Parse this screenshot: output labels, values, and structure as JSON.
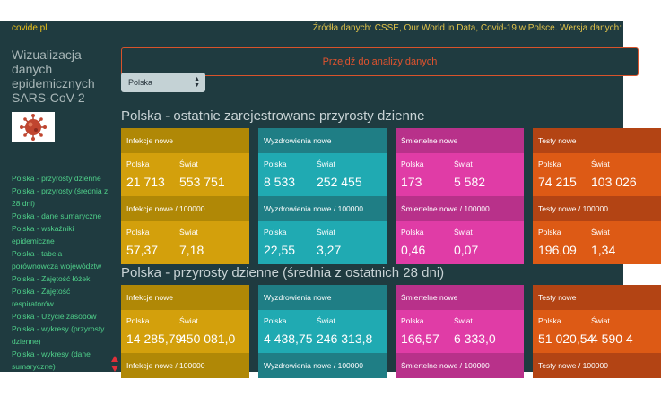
{
  "header": {
    "brand": "covide.pl",
    "sources": "Źródła danych: CSSE, Our World in Data, Covid-19 w Polsce. Wersja danych:"
  },
  "sidebar": {
    "title": "Wizualizacja danych epidemicznych SARS-CoV-2",
    "logo_icon": "coronavirus-icon",
    "items": [
      "Polska - przyrosty dzienne",
      "Polska - przyrosty (średnia z 28 dni)",
      "Polska - dane sumaryczne",
      "Polska - wskaźniki epidemiczne",
      "Polska - tabela porównowcza województw",
      "Polska - Zajętość łóżek",
      "Polska - Zajętość respiratorów",
      "Polska - Użycie zasobów",
      "Polska - wykresy (przyrosty dzienne)",
      "Polska - wykresy (dane sumaryczne)"
    ]
  },
  "controls": {
    "analysis_button": "Przejdź do analizy danych",
    "country_select": "Polska"
  },
  "sections": [
    {
      "title": "Polska - ostatnie zarejestrowane przyrosty dzienne",
      "cards": [
        {
          "header": "Infekcje nowe",
          "col1": "Polska",
          "col2": "Świat",
          "v1": "21 713",
          "v2": "553 751",
          "sub_header": "Infekcje nowe / 100000",
          "sv1": "57,37",
          "sv2": "7,18",
          "header_color": "#b08806",
          "body_color": "#d3a00c"
        },
        {
          "header": "Wyzdrowienia nowe",
          "col1": "Polska",
          "col2": "Świat",
          "v1": "8 533",
          "v2": "252 455",
          "sub_header": "Wyzdrowienia nowe / 100000",
          "sv1": "22,55",
          "sv2": "3,27",
          "header_color": "#1f7e85",
          "body_color": "#20aab2"
        },
        {
          "header": "Śmiertelne nowe",
          "col1": "Polska",
          "col2": "Świat",
          "v1": "173",
          "v2": "5 582",
          "sub_header": "Śmiertelne nowe / 100000",
          "sv1": "0,46",
          "sv2": "0,07",
          "header_color": "#b8318a",
          "body_color": "#e03ca6"
        },
        {
          "header": "Testy nowe",
          "col1": "Polska",
          "col2": "Świat",
          "v1": "74 215",
          "v2": "103 026",
          "sub_header": "Testy nowe / 100000",
          "sv1": "196,09",
          "sv2": "1,34",
          "header_color": "#b34414",
          "body_color": "#dd5a15"
        }
      ]
    },
    {
      "title": "Polska - przyrosty dzienne (średnia z ostatnich 28 dni)",
      "cards": [
        {
          "header": "Infekcje nowe",
          "col1": "Polska",
          "col2": "Świat",
          "v1": "14 285,79",
          "v2": "450 081,0",
          "sub_header": "Infekcje nowe / 100000",
          "header_color": "#b08806",
          "body_color": "#d3a00c"
        },
        {
          "header": "Wyzdrowienia nowe",
          "col1": "Polska",
          "col2": "Świat",
          "v1": "4 438,75",
          "v2": "246 313,8",
          "sub_header": "Wyzdrowienia nowe / 100000",
          "header_color": "#1f7e85",
          "body_color": "#20aab2"
        },
        {
          "header": "Śmiertelne nowe",
          "col1": "Polska",
          "col2": "Świat",
          "v1": "166,57",
          "v2": "6 333,0",
          "sub_header": "Śmiertelne nowe / 100000",
          "header_color": "#b8318a",
          "body_color": "#e03ca6"
        },
        {
          "header": "Testy nowe",
          "col1": "Polska",
          "col2": "Świat",
          "v1": "51 020,54",
          "v2": "4 590 4",
          "sub_header": "Testy nowe / 100000",
          "header_color": "#b34414",
          "body_color": "#dd5a15"
        }
      ]
    }
  ]
}
